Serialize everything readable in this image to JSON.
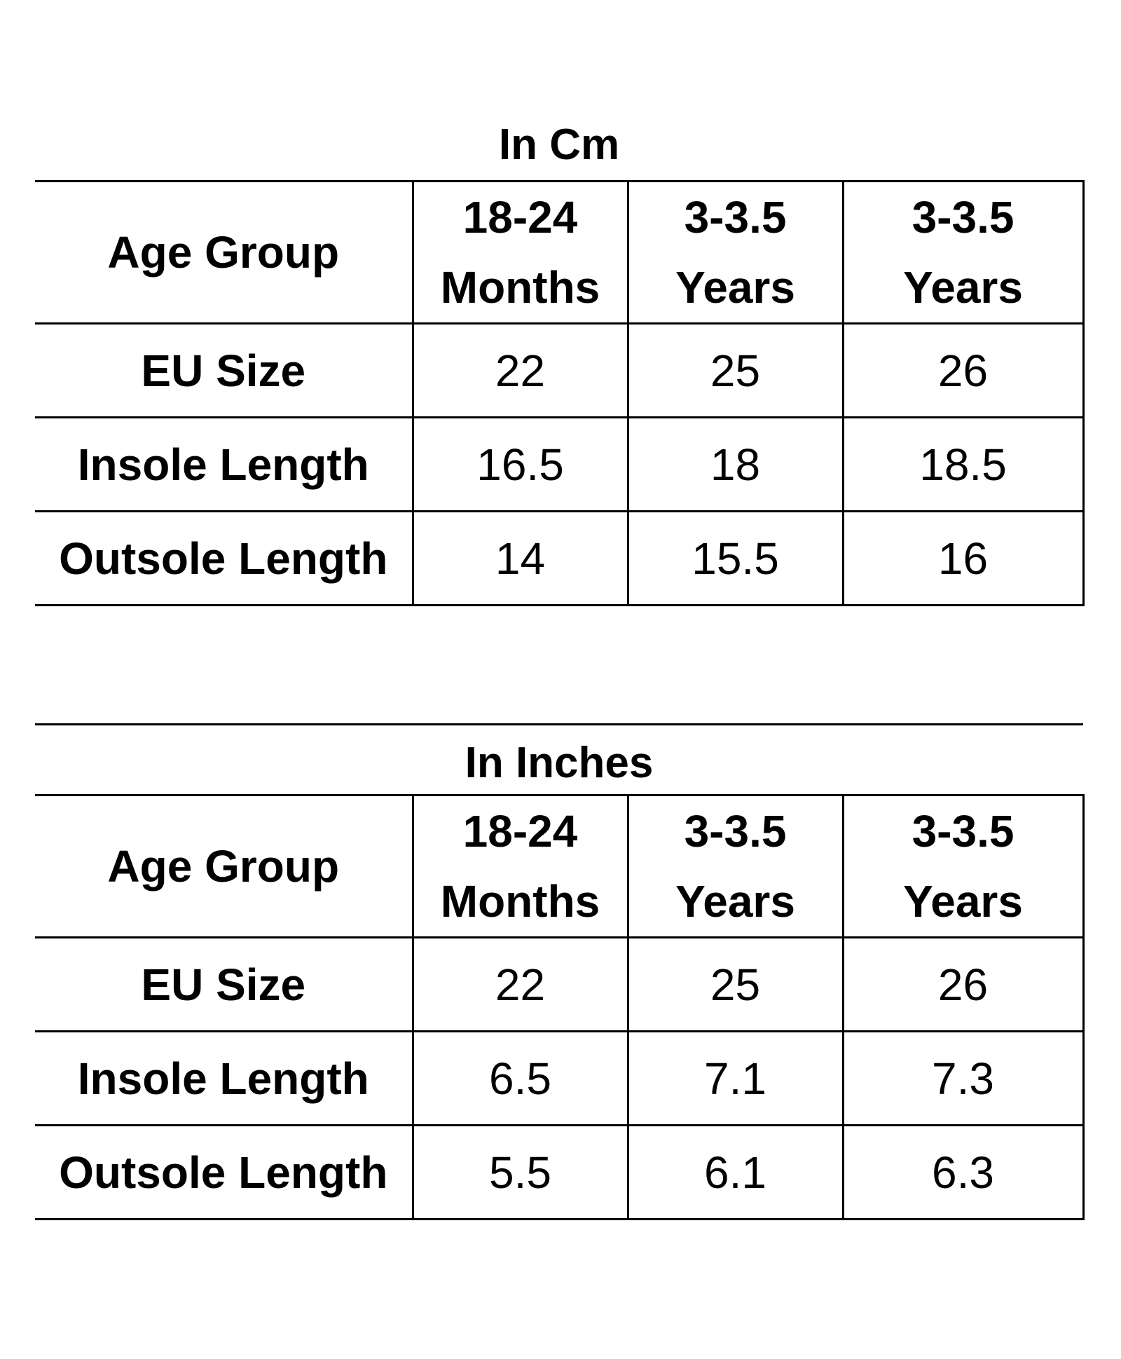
{
  "tables": [
    {
      "title": "In Cm",
      "header": {
        "row_label": "Age Group",
        "columns": [
          {
            "line1": "18-24",
            "line2": "Months"
          },
          {
            "line1": "3-3.5",
            "line2": "Years"
          },
          {
            "line1": "3-3.5",
            "line2": "Years"
          }
        ]
      },
      "rows": [
        {
          "label": "EU Size",
          "values": [
            "22",
            "25",
            "26"
          ]
        },
        {
          "label": "Insole Length",
          "values": [
            "16.5",
            "18",
            "18.5"
          ]
        },
        {
          "label": "Outsole Length",
          "values": [
            "14",
            "15.5",
            "16"
          ]
        }
      ]
    },
    {
      "title": "In Inches",
      "header": {
        "row_label": "Age Group",
        "columns": [
          {
            "line1": "18-24",
            "line2": "Months"
          },
          {
            "line1": "3-3.5",
            "line2": "Years"
          },
          {
            "line1": "3-3.5",
            "line2": "Years"
          }
        ]
      },
      "rows": [
        {
          "label": "EU Size",
          "values": [
            "22",
            "25",
            "26"
          ]
        },
        {
          "label": "Insole Length",
          "values": [
            "6.5",
            "7.1",
            "7.3"
          ]
        },
        {
          "label": "Outsole Length",
          "values": [
            "5.5",
            "6.1",
            "6.3"
          ]
        }
      ]
    }
  ]
}
